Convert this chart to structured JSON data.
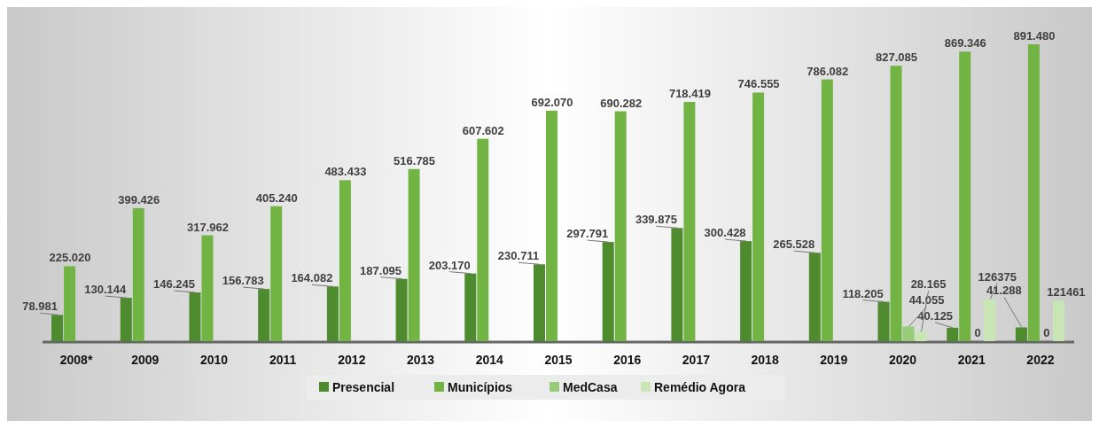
{
  "chart_data": {
    "type": "bar",
    "categories": [
      "2008*",
      "2009",
      "2010",
      "2011",
      "2012",
      "2013",
      "2014",
      "2015",
      "2016",
      "2017",
      "2018",
      "2019",
      "2020",
      "2021",
      "2022"
    ],
    "series": [
      {
        "name": "Presencial",
        "color": "#4e8a2e",
        "values": [
          78981,
          130144,
          146245,
          156783,
          164082,
          187095,
          203170,
          230711,
          297791,
          339875,
          300428,
          265528,
          118205,
          40125,
          41288
        ],
        "value_labels": [
          "78.981",
          "130.144",
          "146.245",
          "156.783",
          "164.082",
          "187.095",
          "203.170",
          "230.711",
          "297.791",
          "339.875",
          "300.428",
          "265.528",
          "118.205",
          "40.125",
          "41.288"
        ]
      },
      {
        "name": "Municípios",
        "color": "#72b444",
        "values": [
          225020,
          399426,
          317962,
          405240,
          483433,
          516785,
          607602,
          692070,
          690282,
          718419,
          746555,
          786082,
          827085,
          869346,
          891480
        ],
        "value_labels": [
          "225.020",
          "399.426",
          "317.962",
          "405.240",
          "483.433",
          "516.785",
          "607.602",
          "692.070",
          "690.282",
          "718.419",
          "746.555",
          "786.082",
          "827.085",
          "869.346",
          "891.480"
        ]
      },
      {
        "name": "MedCasa",
        "color": "#98cc78",
        "values": [
          null,
          null,
          null,
          null,
          null,
          null,
          null,
          null,
          null,
          null,
          null,
          null,
          44055,
          0,
          0
        ],
        "value_labels": [
          null,
          null,
          null,
          null,
          null,
          null,
          null,
          null,
          null,
          null,
          null,
          null,
          "44.055",
          "0",
          "0"
        ]
      },
      {
        "name": "Remédio Agora",
        "color": "#c8e6b4",
        "values": [
          null,
          null,
          null,
          null,
          null,
          null,
          null,
          null,
          null,
          null,
          null,
          null,
          28165,
          126375,
          121461
        ],
        "value_labels": [
          null,
          null,
          null,
          null,
          null,
          null,
          null,
          null,
          null,
          null,
          null,
          null,
          "28.165",
          "126375",
          "121461"
        ]
      }
    ],
    "legend": "bottom"
  }
}
